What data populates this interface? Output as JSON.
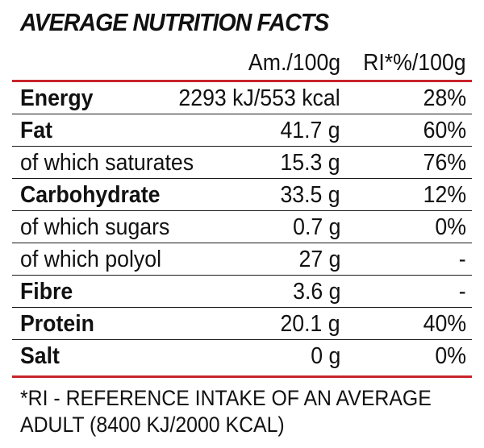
{
  "title": "AVERAGE NUTRITION FACTS",
  "columns": {
    "amount": "Am./100g",
    "ri": "RI*%/100g"
  },
  "rows": [
    {
      "label": "Energy",
      "amount": "2293 kJ/553 kcal",
      "ri": "28%",
      "bold": true
    },
    {
      "label": "Fat",
      "amount": "41.7 g",
      "ri": "60%",
      "bold": true
    },
    {
      "label": "of which saturates",
      "amount": "15.3 g",
      "ri": "76%",
      "bold": false
    },
    {
      "label": "Carbohydrate",
      "amount": "33.5 g",
      "ri": "12%",
      "bold": true
    },
    {
      "label": "of which sugars",
      "amount": "0.7 g",
      "ri": "0%",
      "bold": false
    },
    {
      "label": "of which polyol",
      "amount": "27 g",
      "ri": "-",
      "bold": false
    },
    {
      "label": "Fibre",
      "amount": "3.6 g",
      "ri": "-",
      "bold": true
    },
    {
      "label": "Protein",
      "amount": "20.1 g",
      "ri": "40%",
      "bold": true
    },
    {
      "label": "Salt",
      "amount": "0 g",
      "ri": "0%",
      "bold": true
    }
  ],
  "footnote": {
    "line1": "*RI - REFERENCE INTAKE OF AN AVERAGE",
    "line2": "ADULT (8400 KJ/2000 KCAL)"
  },
  "colors": {
    "accent": "#c8242b",
    "text": "#111111"
  }
}
